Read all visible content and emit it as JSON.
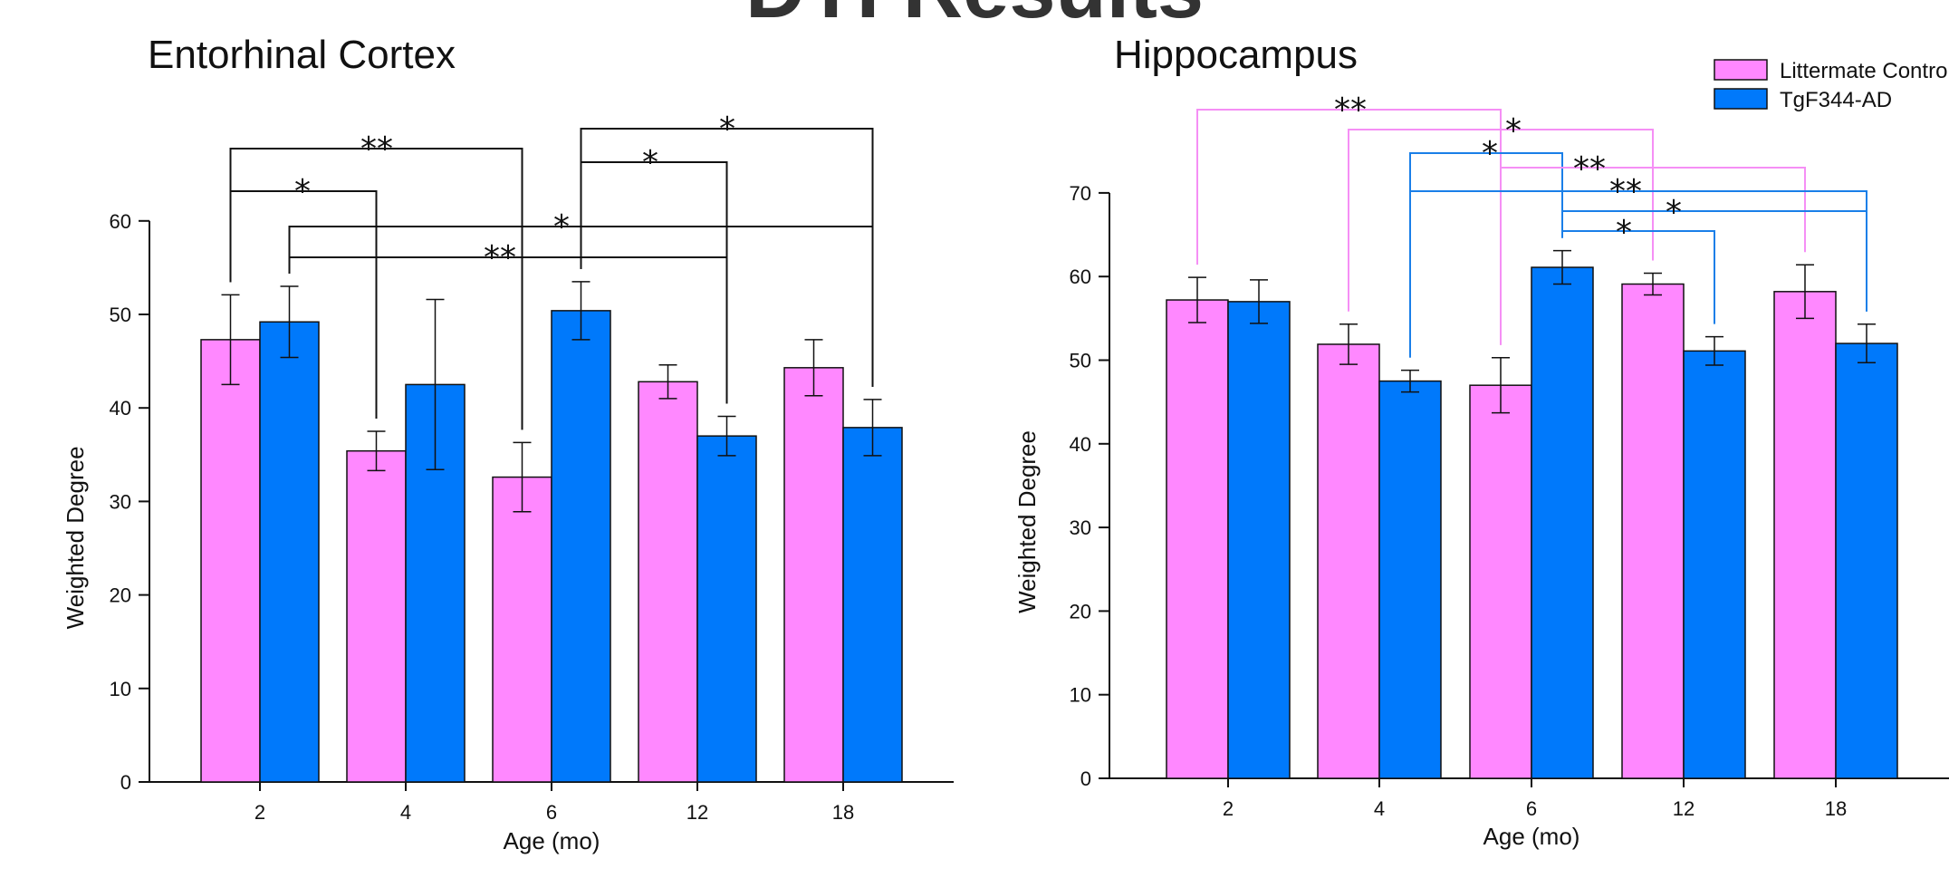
{
  "title": "DTI Results",
  "legend": [
    {
      "label": "Littermate Controls",
      "color": "#ff88ff"
    },
    {
      "label": "TgF344-AD",
      "color": "#0079fb"
    }
  ],
  "chart_data": [
    {
      "type": "bar",
      "title": "Entorhinal Cortex",
      "xlabel": "Age (mo)",
      "ylabel": "Weighted Degree",
      "ylim": [
        0,
        60
      ],
      "yticks": [
        0,
        10,
        20,
        30,
        40,
        50,
        60
      ],
      "categories": [
        "2",
        "4",
        "6",
        "12",
        "18"
      ],
      "series": [
        {
          "name": "Littermate Controls",
          "color": "#ff88ff",
          "values": [
            47.3,
            35.4,
            32.6,
            42.8,
            44.3
          ],
          "errors": [
            4.8,
            2.1,
            3.7,
            1.8,
            3.0
          ]
        },
        {
          "name": "TgF344-AD",
          "color": "#0079fb",
          "values": [
            49.2,
            42.5,
            50.4,
            37.0,
            37.9
          ],
          "errors": [
            3.8,
            9.1,
            3.1,
            2.1,
            3.0
          ]
        }
      ],
      "significance": [
        {
          "from": [
            0,
            0
          ],
          "to": [
            2,
            0
          ],
          "label": "**"
        },
        {
          "from": [
            0,
            0
          ],
          "to": [
            1,
            0
          ],
          "label": "*"
        },
        {
          "from": [
            0,
            1
          ],
          "to": [
            4,
            1
          ],
          "label": "*"
        },
        {
          "from": [
            0,
            1
          ],
          "to": [
            3,
            1
          ],
          "label": "**"
        },
        {
          "from": [
            2,
            1
          ],
          "to": [
            4,
            1
          ],
          "label": "*"
        },
        {
          "from": [
            2,
            1
          ],
          "to": [
            3,
            1
          ],
          "label": "*"
        }
      ]
    },
    {
      "type": "bar",
      "title": "Hippocampus",
      "xlabel": "Age (mo)",
      "ylabel": "Weighted Degree",
      "ylim": [
        0,
        70
      ],
      "yticks": [
        0,
        10,
        20,
        30,
        40,
        50,
        60,
        70
      ],
      "categories": [
        "2",
        "4",
        "6",
        "12",
        "18"
      ],
      "series": [
        {
          "name": "Littermate Controls",
          "color": "#ff88ff",
          "values": [
            57.2,
            51.9,
            47.0,
            59.1,
            58.2
          ],
          "errors": [
            2.7,
            2.4,
            3.3,
            1.3,
            3.2
          ]
        },
        {
          "name": "TgF344-AD",
          "color": "#0079fb",
          "values": [
            57.0,
            47.5,
            61.1,
            51.1,
            52.0
          ],
          "errors": [
            2.6,
            1.3,
            2.0,
            1.7,
            2.3
          ]
        }
      ],
      "significance": [
        {
          "from": [
            0,
            0
          ],
          "to": [
            2,
            0
          ],
          "label": "**",
          "color": "#f58ff5"
        },
        {
          "from": [
            1,
            0
          ],
          "to": [
            3,
            0
          ],
          "label": "*",
          "color": "#f58ff5"
        },
        {
          "from": [
            1,
            1
          ],
          "to": [
            2,
            1
          ],
          "label": "*",
          "color": "#1a7fe8"
        },
        {
          "from": [
            2,
            0
          ],
          "to": [
            4,
            0
          ],
          "label": "**",
          "color": "#f58ff5"
        },
        {
          "from": [
            1,
            1
          ],
          "to": [
            4,
            1
          ],
          "label": "**",
          "color": "#1a7fe8"
        },
        {
          "from": [
            2,
            1
          ],
          "to": [
            4,
            1
          ],
          "label": "*",
          "color": "#1a7fe8"
        },
        {
          "from": [
            2,
            1
          ],
          "to": [
            3,
            1
          ],
          "label": "*",
          "color": "#1a7fe8"
        }
      ]
    }
  ]
}
